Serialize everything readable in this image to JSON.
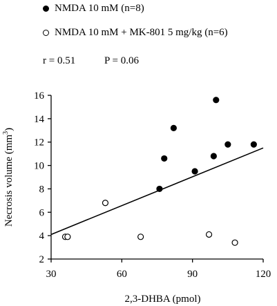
{
  "legend": {
    "series_filled": "NMDA 10 mM (n=8)",
    "series_open": "NMDA 10 mM + MK-801 5 mg/kg (n=6)"
  },
  "stats": {
    "r": "r = 0.51",
    "p": "P = 0.06"
  },
  "chart_data": {
    "type": "scatter",
    "xlabel": "2,3-DHBA (pmol)",
    "ylabel_main": "Necrosis volume (mm",
    "ylabel_sup": "3",
    "ylabel_close": ")",
    "xlim": [
      30,
      120
    ],
    "ylim": [
      2,
      16
    ],
    "xticks": [
      30,
      60,
      90,
      120
    ],
    "yticks": [
      2,
      4,
      6,
      8,
      10,
      12,
      14,
      16
    ],
    "series": [
      {
        "name": "NMDA 10 mM (n=8)",
        "marker": "filled",
        "points": [
          {
            "x": 76,
            "y": 8.0
          },
          {
            "x": 78,
            "y": 10.6
          },
          {
            "x": 82,
            "y": 13.2
          },
          {
            "x": 91,
            "y": 9.5
          },
          {
            "x": 99,
            "y": 10.8
          },
          {
            "x": 100,
            "y": 15.6
          },
          {
            "x": 105,
            "y": 11.8
          },
          {
            "x": 116,
            "y": 11.8
          }
        ]
      },
      {
        "name": "NMDA 10 mM + MK-801 5 mg/kg (n=6)",
        "marker": "open",
        "points": [
          {
            "x": 36,
            "y": 3.9
          },
          {
            "x": 37,
            "y": 3.9
          },
          {
            "x": 53,
            "y": 6.8
          },
          {
            "x": 68,
            "y": 3.9
          },
          {
            "x": 97,
            "y": 4.1
          },
          {
            "x": 108,
            "y": 3.4
          }
        ]
      }
    ],
    "regression_line": {
      "x0": 30,
      "y0": 4.1,
      "x1": 120,
      "y1": 11.5
    },
    "grid": false,
    "legend_position": "top"
  }
}
